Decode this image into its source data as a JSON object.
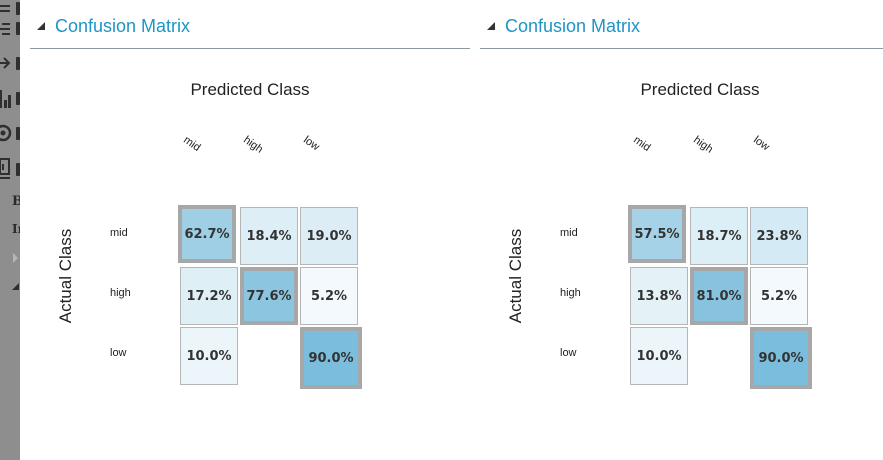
{
  "panels": [
    {
      "title": "Confusion Matrix",
      "predicted_label": "Predicted Class",
      "actual_label": "Actual Class",
      "columns": [
        "mid",
        "high",
        "low"
      ],
      "rows": [
        "mid",
        "high",
        "low"
      ],
      "cells": [
        [
          "62.7%",
          "18.4%",
          "19.0%"
        ],
        [
          "17.2%",
          "77.6%",
          "5.2%"
        ],
        [
          "10.0%",
          "",
          "90.0%"
        ]
      ],
      "values": [
        [
          62.7,
          18.4,
          19.0
        ],
        [
          17.2,
          77.6,
          5.2
        ],
        [
          10.0,
          0,
          90.0
        ]
      ]
    },
    {
      "title": "Confusion Matrix",
      "predicted_label": "Predicted Class",
      "actual_label": "Actual Class",
      "columns": [
        "mid",
        "high",
        "low"
      ],
      "rows": [
        "mid",
        "high",
        "low"
      ],
      "cells": [
        [
          "57.5%",
          "18.7%",
          "23.8%"
        ],
        [
          "13.8%",
          "81.0%",
          "5.2%"
        ],
        [
          "10.0%",
          "",
          "90.0%"
        ]
      ],
      "values": [
        [
          57.5,
          18.7,
          23.8
        ],
        [
          13.8,
          81.0,
          5.2
        ],
        [
          10.0,
          0,
          90.0
        ]
      ]
    }
  ],
  "sidebar": {
    "partial_letters": [
      "B",
      "In"
    ]
  },
  "colors": {
    "accent": "#1f95c4",
    "high": "#6fb7d9",
    "low": "#ffffff",
    "diag_border": "#a7a7a7"
  }
}
